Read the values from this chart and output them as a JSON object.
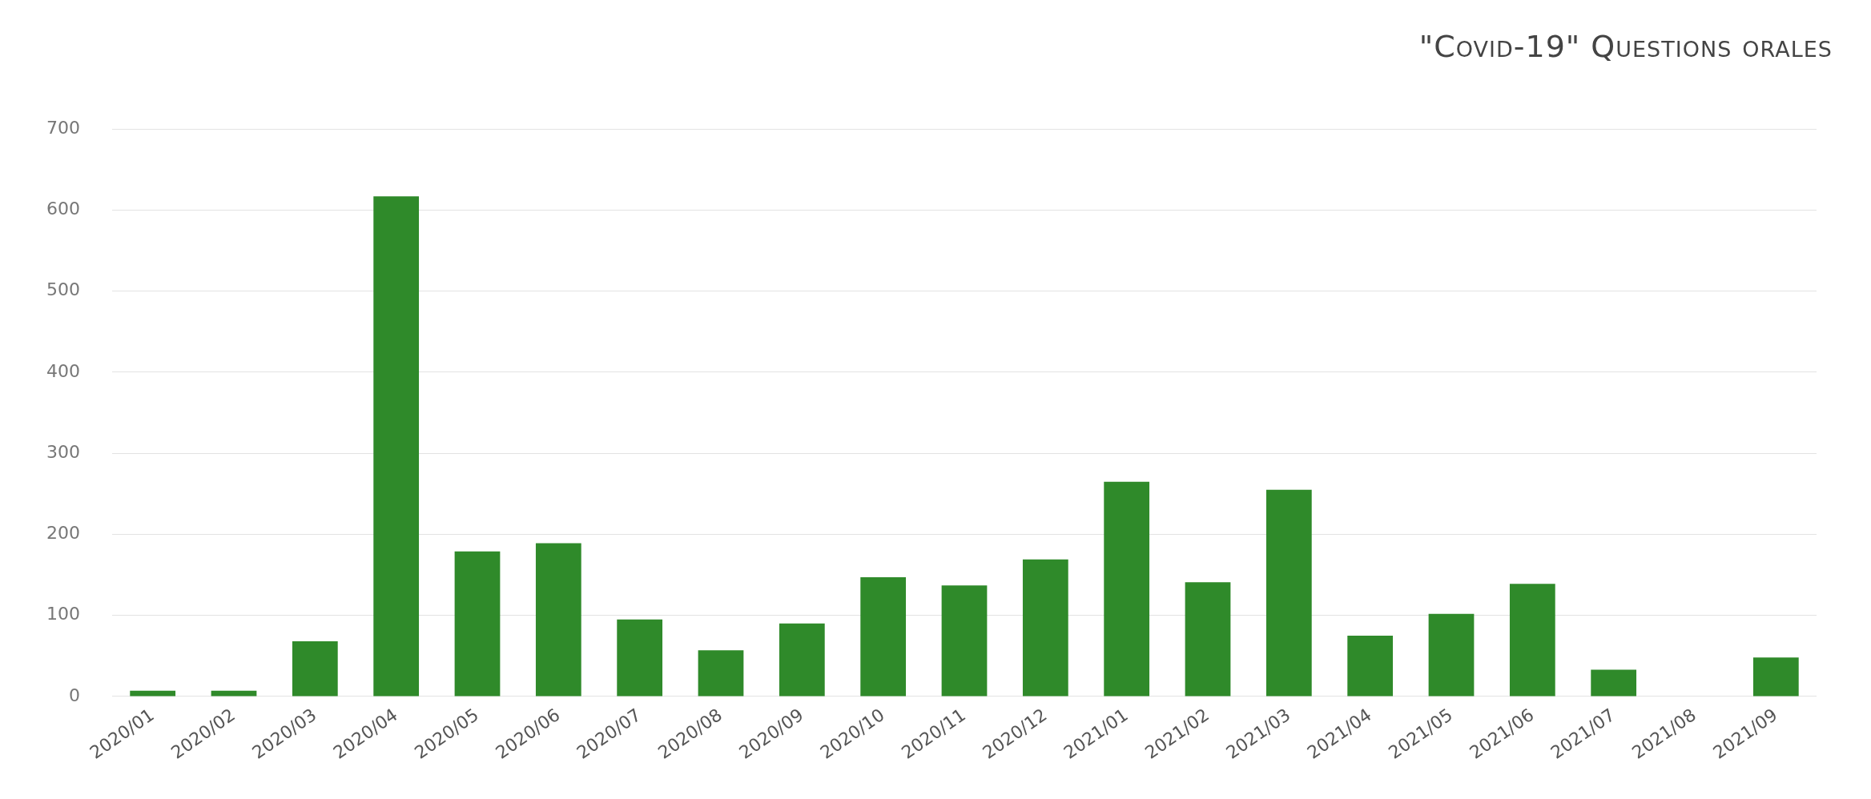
{
  "chart_data": {
    "type": "bar",
    "title": "\"Covid-19\" Questions orales",
    "categories": [
      "2020/01",
      "2020/02",
      "2020/03",
      "2020/04",
      "2020/05",
      "2020/06",
      "2020/07",
      "2020/08",
      "2020/09",
      "2020/10",
      "2020/11",
      "2020/12",
      "2021/01",
      "2021/02",
      "2021/03",
      "2021/04",
      "2021/05",
      "2021/06",
      "2021/07",
      "2021/08",
      "2021/09"
    ],
    "values": [
      7,
      7,
      68,
      617,
      179,
      189,
      95,
      57,
      90,
      147,
      137,
      169,
      265,
      141,
      255,
      75,
      102,
      139,
      33,
      0,
      48
    ],
    "color": "#2f8a2a",
    "ylim": [
      0,
      700
    ],
    "yticks": [
      0,
      100,
      200,
      300,
      400,
      500,
      600,
      700
    ],
    "grid": "y",
    "legend": false
  }
}
